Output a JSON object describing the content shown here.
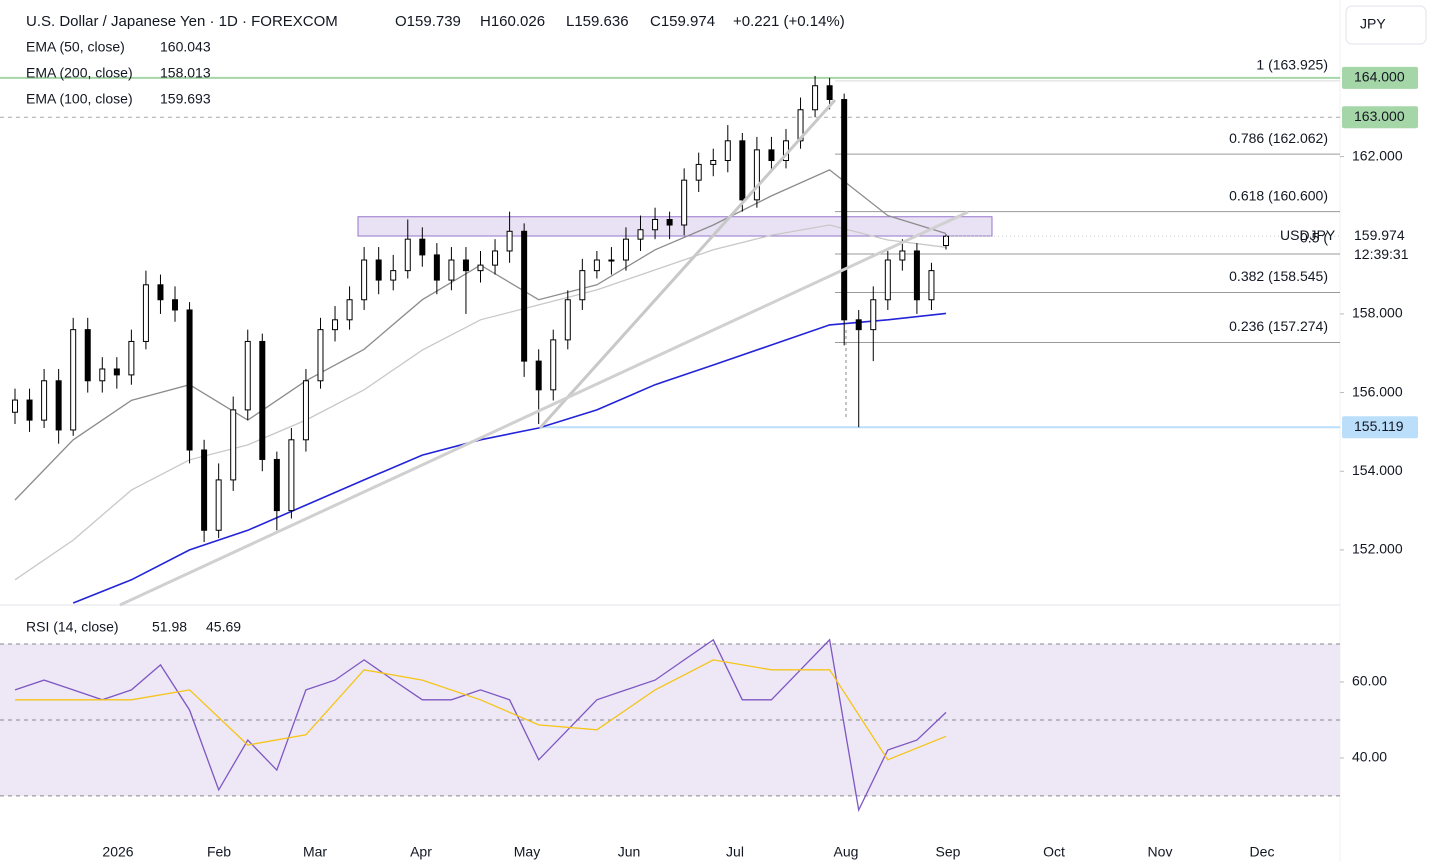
{
  "header": {
    "title": "U.S. Dollar / Japanese Yen · 1D · FOREXCOM",
    "open": "O159.739",
    "high": "H160.026",
    "low": "L159.636",
    "close": "C159.974",
    "change": "+0.221 (+0.14%)",
    "currency": "JPY"
  },
  "x_axis_labels": [
    "2026",
    "Feb",
    "Mar",
    "Apr",
    "May",
    "Jun",
    "Jul",
    "Aug",
    "Sep",
    "Oct",
    "Nov",
    "Dec"
  ],
  "chart_data": [
    {
      "type": "candlestick",
      "open": [
        155.5,
        155.81,
        155.3,
        156.3,
        155.05,
        157.6,
        156.3,
        156.6,
        156.45,
        157.3,
        158.74,
        158.36,
        158.1,
        154.54,
        152.5,
        153.78,
        155.56,
        157.3,
        154.3,
        153.0,
        154.8,
        156.3,
        157.6,
        157.85,
        158.36,
        159.37,
        158.86,
        159.1,
        159.9,
        159.5,
        158.86,
        159.37,
        159.1,
        159.24,
        159.6,
        160.1,
        156.8,
        156.07,
        157.34,
        158.36,
        159.1,
        159.37,
        159.37,
        159.9,
        160.14,
        160.4,
        160.26,
        161.4,
        161.8,
        161.9,
        162.4,
        160.9,
        162.17,
        161.9,
        162.4,
        163.19,
        163.8,
        163.45,
        157.85,
        157.6,
        158.36,
        159.37,
        159.6,
        158.36,
        159.739
      ],
      "high": [
        156.1,
        156.1,
        156.6,
        156.6,
        157.9,
        157.9,
        156.9,
        156.9,
        157.6,
        159.1,
        159.0,
        158.7,
        158.3,
        154.8,
        154.2,
        155.9,
        157.6,
        157.5,
        154.5,
        155.1,
        156.6,
        157.9,
        158.2,
        158.7,
        159.7,
        159.7,
        159.5,
        160.4,
        160.2,
        159.8,
        159.7,
        159.7,
        159.6,
        159.9,
        160.6,
        160.3,
        157.1,
        157.6,
        158.6,
        159.4,
        159.6,
        159.7,
        160.2,
        160.5,
        160.7,
        160.6,
        161.7,
        162.1,
        162.2,
        162.8,
        162.6,
        162.5,
        162.5,
        162.7,
        163.5,
        164.05,
        164.0,
        163.6,
        158.1,
        158.7,
        159.6,
        159.9,
        159.8,
        159.3,
        160.026
      ],
      "low": [
        155.2,
        155.0,
        155.1,
        154.7,
        154.9,
        156.0,
        156.0,
        156.1,
        156.2,
        157.1,
        158.0,
        157.8,
        154.2,
        152.2,
        152.3,
        153.5,
        155.3,
        154.0,
        152.5,
        152.8,
        154.5,
        156.1,
        157.3,
        157.6,
        158.1,
        158.5,
        158.6,
        158.9,
        159.2,
        158.5,
        158.6,
        158.0,
        158.8,
        159.0,
        159.3,
        156.4,
        155.2,
        155.8,
        157.1,
        158.1,
        158.9,
        159.0,
        159.1,
        159.6,
        159.9,
        159.9,
        160.0,
        161.1,
        161.5,
        161.6,
        160.6,
        160.7,
        161.6,
        161.7,
        162.2,
        163.0,
        163.2,
        157.2,
        155.12,
        156.8,
        158.1,
        159.1,
        158.0,
        158.1,
        159.636
      ],
      "close": [
        155.81,
        155.3,
        156.3,
        155.05,
        157.6,
        156.3,
        156.6,
        156.45,
        157.3,
        158.74,
        158.36,
        158.1,
        154.54,
        152.5,
        153.78,
        155.56,
        157.3,
        154.3,
        153.0,
        154.8,
        156.3,
        157.6,
        157.85,
        158.36,
        159.37,
        158.86,
        159.1,
        159.9,
        159.5,
        158.86,
        159.37,
        159.1,
        159.24,
        159.6,
        160.1,
        156.8,
        156.07,
        157.34,
        158.36,
        159.1,
        159.37,
        159.37,
        159.9,
        160.14,
        160.4,
        160.26,
        161.4,
        161.8,
        161.9,
        162.4,
        160.9,
        162.17,
        161.9,
        162.4,
        163.19,
        163.8,
        163.45,
        157.85,
        157.6,
        158.36,
        159.37,
        159.6,
        158.36,
        159.1,
        159.974
      ],
      "up_color": "#ffffff",
      "down_color": "#000000",
      "series": [
        {
          "name": "EMA (50, close)",
          "color": "#8c8c8c",
          "values": [
            153.27,
            154.8,
            155.8,
            156.2,
            155.3,
            156.3,
            157.1,
            158.36,
            159.24,
            158.36,
            158.74,
            159.63,
            160.26,
            161.0,
            161.66,
            160.5,
            160.043
          ]
        },
        {
          "name": "EMA (200, close)",
          "color": "#2323d8",
          "values": [
            null,
            150.65,
            151.24,
            152.0,
            152.5,
            153.14,
            153.78,
            154.41,
            154.8,
            155.1,
            155.56,
            156.2,
            156.7,
            157.21,
            157.72,
            157.85,
            158.013
          ]
        },
        {
          "name": "EMA (100, close)",
          "color": "#c8c8c8",
          "values": [
            151.24,
            152.25,
            153.52,
            154.29,
            154.67,
            155.3,
            156.07,
            157.08,
            157.85,
            158.23,
            158.61,
            159.12,
            159.63,
            160.0,
            160.26,
            159.88,
            159.693
          ]
        }
      ],
      "ylim": [
        150.6,
        165.98
      ],
      "yticks": [
        {
          "value": 152,
          "label": "152.000"
        },
        {
          "value": 154,
          "label": "154.000"
        },
        {
          "value": 156,
          "label": "156.000"
        },
        {
          "value": 158,
          "label": "158.000"
        },
        {
          "value": 162,
          "label": "162.000"
        }
      ],
      "hlines": [
        {
          "value": 164,
          "label": "164.000",
          "color": "#a5d6a7"
        },
        {
          "value": 163,
          "label": "163.000",
          "color": "#a5d6a7"
        },
        {
          "value": 155.119,
          "label": "155.119",
          "color": "#bbdefb"
        }
      ],
      "fib_levels": [
        {
          "value": 163.925,
          "label": "1 (163.925)"
        },
        {
          "value": 162.062,
          "label": "0.786 (162.062)"
        },
        {
          "value": 160.6,
          "label": "0.618 (160.600)"
        },
        {
          "value": 159.522,
          "label": "0.5 ("
        },
        {
          "value": 158.545,
          "label": "0.382 (158.545)"
        },
        {
          "value": 157.274,
          "label": "0.236 (157.274)"
        }
      ],
      "zone": [
        159.98,
        160.47
      ],
      "last_price": {
        "symbol": "USDJPY",
        "price": {
          "value": 159.974,
          "label": "159.974"
        },
        "countdown": "12:39:31"
      }
    },
    {
      "type": "line",
      "series": [
        {
          "name": "RSI (14, close)",
          "color": "#7e57c2",
          "values": [
            57.9,
            60.5,
            57.9,
            55.3,
            57.9,
            64.5,
            52.6,
            31.6,
            44.7,
            36.8,
            57.9,
            60.5,
            65.8,
            60.5,
            55.3,
            55.3,
            57.9,
            55.3,
            39.5,
            47.4,
            55.3,
            57.9,
            60.5,
            65.8,
            71.1,
            55.3,
            55.3,
            63.2,
            71.1,
            26.3,
            42.1,
            44.7,
            51.98
          ]
        },
        {
          "color": "#f5c518",
          "values": [
            55.3,
            55.3,
            55.3,
            57.9,
            43.4,
            46.1,
            63.2,
            60.5,
            55.3,
            48.7,
            47.4,
            57.9,
            65.8,
            63.2,
            63.2,
            39.5,
            45.69
          ]
        }
      ],
      "ylim": [
        18.4,
        80.26
      ],
      "yticks": [
        {
          "value": 40,
          "label": "40.00"
        },
        {
          "value": 60,
          "label": "60.00"
        }
      ],
      "levels": [
        30,
        50,
        70
      ],
      "band_color": "#ede7f6"
    }
  ]
}
